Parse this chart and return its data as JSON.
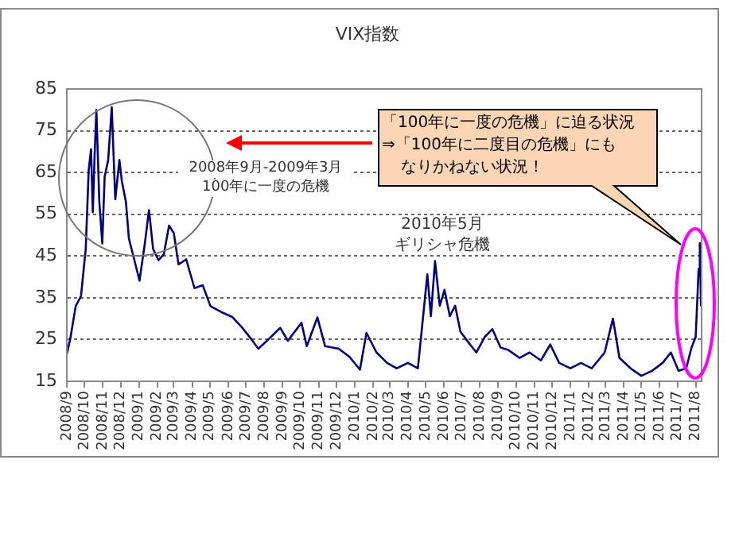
{
  "chart_data": {
    "type": "line",
    "title": "VIX指数",
    "x": [
      "2008-09-01",
      "2008-09-07",
      "2008-09-16",
      "2008-09-25",
      "2008-10-03",
      "2008-10-08",
      "2008-10-12",
      "2008-10-15",
      "2008-10-18",
      "2008-10-21",
      "2008-10-26",
      "2008-10-31",
      "2008-11-04",
      "2008-11-10",
      "2008-11-16",
      "2008-11-22",
      "2008-11-29",
      "2008-12-03",
      "2008-12-10",
      "2008-12-15",
      "2008-12-24",
      "2009-01-02",
      "2009-01-11",
      "2009-01-18",
      "2009-01-25",
      "2009-02-03",
      "2009-02-12",
      "2009-02-21",
      "2009-03-01",
      "2009-03-09",
      "2009-03-22",
      "2009-04-05",
      "2009-04-19",
      "2009-05-02",
      "2009-05-20",
      "2009-06-08",
      "2009-06-25",
      "2009-07-09",
      "2009-07-22",
      "2009-08-10",
      "2009-08-28",
      "2009-09-10",
      "2009-10-03",
      "2009-10-12",
      "2009-10-30",
      "2009-11-12",
      "2009-12-05",
      "2009-12-23",
      "2010-01-10",
      "2010-01-21",
      "2010-02-07",
      "2010-02-25",
      "2010-03-13",
      "2010-04-01",
      "2010-04-18",
      "2010-05-04",
      "2010-05-10",
      "2010-05-17",
      "2010-05-25",
      "2010-06-02",
      "2010-06-11",
      "2010-06-20",
      "2010-06-29",
      "2010-07-12",
      "2010-07-26",
      "2010-08-09",
      "2010-08-22",
      "2010-09-05",
      "2010-09-18",
      "2010-10-07",
      "2010-10-24",
      "2010-11-12",
      "2010-11-28",
      "2010-12-13",
      "2011-01-01",
      "2011-01-19",
      "2011-02-06",
      "2011-02-28",
      "2011-03-14",
      "2011-03-25",
      "2011-04-13",
      "2011-05-01",
      "2011-05-19",
      "2011-06-06",
      "2011-06-20",
      "2011-07-03",
      "2011-07-16",
      "2011-07-25",
      "2011-08-01",
      "2011-08-06",
      "2011-08-08",
      "2011-08-10"
    ],
    "series": [
      {
        "color": "#000080",
        "values": [
          21.5,
          25.3,
          33,
          35.4,
          46.7,
          65.5,
          70.6,
          55.5,
          69,
          80,
          58,
          48,
          64,
          68,
          80.6,
          58.6,
          68,
          63,
          58,
          49.2,
          44.2,
          39.1,
          48,
          56,
          46.7,
          44,
          45.4,
          52.3,
          50.5,
          43,
          44.2,
          37.3,
          38,
          33,
          31.6,
          30.4,
          27.8,
          25.3,
          22.8,
          25.3,
          27.8,
          24.7,
          29,
          23.4,
          30.3,
          23.4,
          22.8,
          20.9,
          17.8,
          26.6,
          21.9,
          19.4,
          18.1,
          19.4,
          18.1,
          40.6,
          30.6,
          43.8,
          33.1,
          36.9,
          30.6,
          33.1,
          26.9,
          24.4,
          21.9,
          25.6,
          27.5,
          23.1,
          22.5,
          20.6,
          21.9,
          20,
          23.8,
          19.4,
          18.1,
          19.4,
          18.1,
          21.9,
          30,
          20.6,
          18.1,
          16.3,
          17.5,
          19.4,
          21.9,
          17.5,
          18.1,
          23.1,
          25.6,
          41.9,
          48.1,
          33
        ]
      }
    ],
    "xlim": [
      "2008-09-01",
      "2011-08-11"
    ],
    "xticks": [
      {
        "value": "2008-09",
        "label": "2008/9"
      },
      {
        "value": "2008-10",
        "label": "2008/10"
      },
      {
        "value": "2008-11",
        "label": "2008/11"
      },
      {
        "value": "2008-12",
        "label": "2008/12"
      },
      {
        "value": "2009-01",
        "label": "2009/1"
      },
      {
        "value": "2009-02",
        "label": "2009/2"
      },
      {
        "value": "2009-03",
        "label": "2009/3"
      },
      {
        "value": "2009-04",
        "label": "2009/4"
      },
      {
        "value": "2009-05",
        "label": "2009/5"
      },
      {
        "value": "2009-06",
        "label": "2009/6"
      },
      {
        "value": "2009-07",
        "label": "2009/7"
      },
      {
        "value": "2009-08",
        "label": "2009/8"
      },
      {
        "value": "2009-09",
        "label": "2009/9"
      },
      {
        "value": "2009-10",
        "label": "2009/10"
      },
      {
        "value": "2009-11",
        "label": "2009/11"
      },
      {
        "value": "2009-12",
        "label": "2009/12"
      },
      {
        "value": "2010-01",
        "label": "2010/1"
      },
      {
        "value": "2010-02",
        "label": "2010/2"
      },
      {
        "value": "2010-03",
        "label": "2010/3"
      },
      {
        "value": "2010-04",
        "label": "2010/4"
      },
      {
        "value": "2010-05",
        "label": "2010/5"
      },
      {
        "value": "2010-06",
        "label": "2010/6"
      },
      {
        "value": "2010-07",
        "label": "2010/7"
      },
      {
        "value": "2010-08",
        "label": "2010/8"
      },
      {
        "value": "2010-09",
        "label": "2010/9"
      },
      {
        "value": "2010-10",
        "label": "2010/10"
      },
      {
        "value": "2010-11",
        "label": "2010/11"
      },
      {
        "value": "2010-12",
        "label": "2010/12"
      },
      {
        "value": "2011-01",
        "label": "2011/1"
      },
      {
        "value": "2011-02",
        "label": "2011/2"
      },
      {
        "value": "2011-03",
        "label": "2011/3"
      },
      {
        "value": "2011-04",
        "label": "2011/4"
      },
      {
        "value": "2011-05",
        "label": "2011/5"
      },
      {
        "value": "2011-06",
        "label": "2011/6"
      },
      {
        "value": "2011-07",
        "label": "2011/7"
      },
      {
        "value": "2011-08",
        "label": "2011/8"
      }
    ],
    "ylim": [
      15,
      85
    ],
    "yticks": [
      15,
      25,
      35,
      45,
      55,
      65,
      75,
      85
    ],
    "grid": "y",
    "legend": false,
    "marker": "none",
    "line_style": "solid",
    "annotations": [
      "2008年9月-2009年3月",
      "100年に一度の危機",
      "2010年5月",
      "ギリシャ危機",
      "「100年に一度の危機」に迫る状況",
      "⇒「100年に二度目の危機」にも",
      "なりかねない状況！"
    ]
  }
}
